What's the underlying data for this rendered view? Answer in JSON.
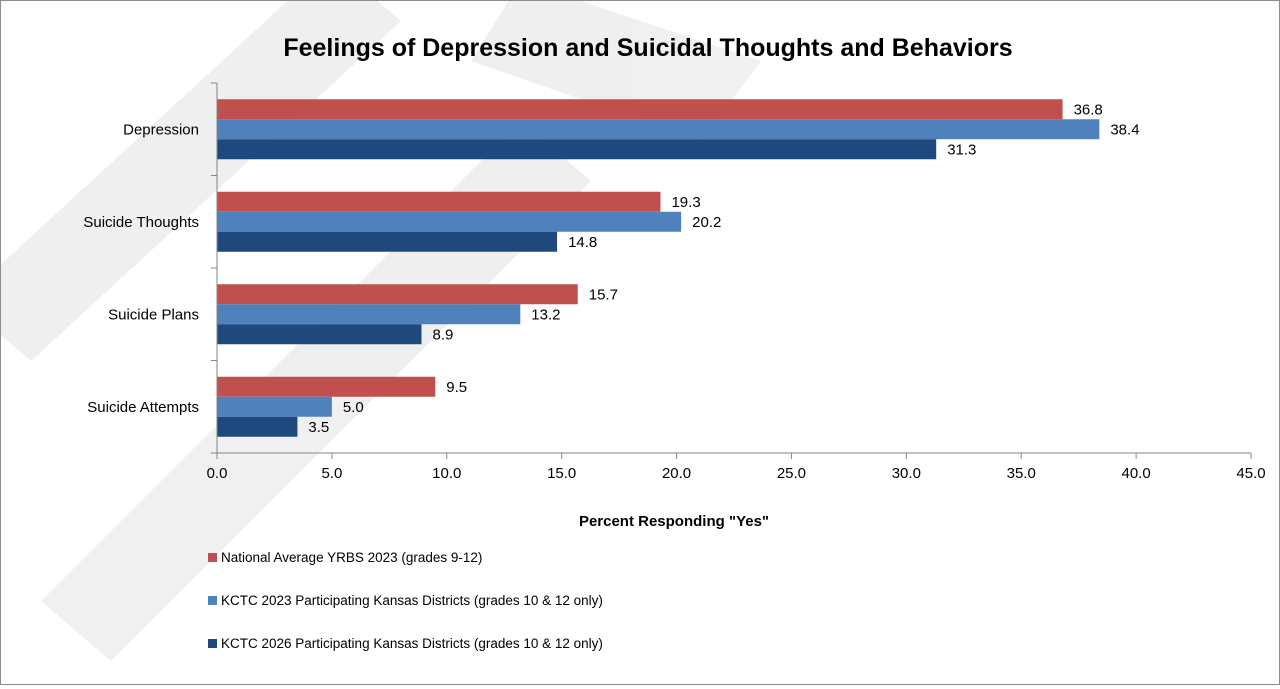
{
  "chart_data": {
    "type": "bar",
    "orientation": "horizontal",
    "title": "Feelings of Depression and Suicidal Thoughts and Behaviors",
    "xlabel": "Percent Responding \"Yes\"",
    "ylabel": "",
    "categories": [
      "Depression",
      "Suicide Thoughts",
      "Suicide Plans",
      "Suicide Attempts"
    ],
    "series": [
      {
        "name": "National Average YRBS 2023 (grades 9-12)",
        "color": "#c0504d",
        "values": [
          36.8,
          19.3,
          15.7,
          9.5
        ],
        "labels": [
          "36.8",
          "19.3",
          "15.7",
          "9.5"
        ]
      },
      {
        "name": "KCTC 2023 Participating Kansas Districts (grades 10 & 12 only)",
        "color": "#4f81bd",
        "values": [
          38.4,
          20.2,
          13.2,
          5.0
        ],
        "labels": [
          "38.4",
          "20.2",
          "13.2",
          "5.0"
        ]
      },
      {
        "name": "KCTC 2026 Participating Kansas Districts (grades 10 & 12 only)",
        "color": "#1f497d",
        "values": [
          31.3,
          14.8,
          8.9,
          3.5
        ],
        "labels": [
          "31.3",
          "14.8",
          "8.9",
          "3.5"
        ]
      }
    ],
    "xlim": [
      0,
      45
    ],
    "xticks": [
      "0.0",
      "5.0",
      "10.0",
      "15.0",
      "20.0",
      "25.0",
      "30.0",
      "35.0",
      "40.0",
      "45.0"
    ],
    "grid": false,
    "legend_position": "bottom-left"
  }
}
